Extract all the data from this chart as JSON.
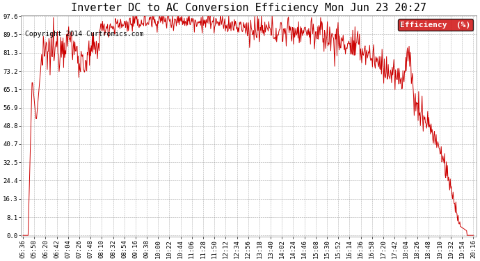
{
  "title": "Inverter DC to AC Conversion Efficiency Mon Jun 23 20:27",
  "copyright": "Copyright 2014 Curtronics.com",
  "legend_label": "Efficiency  (%)",
  "legend_bg": "#cc0000",
  "legend_fg": "#ffffff",
  "line_color": "#cc0000",
  "bg_color": "#ffffff",
  "plot_bg": "#ffffff",
  "grid_color": "#999999",
  "yticks": [
    0.0,
    8.1,
    16.3,
    24.4,
    32.5,
    40.7,
    48.8,
    56.9,
    65.1,
    73.2,
    81.3,
    89.5,
    97.6
  ],
  "xtick_labels": [
    "05:36",
    "05:58",
    "06:20",
    "06:42",
    "07:04",
    "07:26",
    "07:48",
    "08:10",
    "08:32",
    "08:54",
    "09:16",
    "09:38",
    "10:00",
    "10:22",
    "10:44",
    "11:06",
    "11:28",
    "11:50",
    "12:12",
    "12:34",
    "12:56",
    "13:18",
    "13:40",
    "14:02",
    "14:24",
    "14:46",
    "15:08",
    "15:30",
    "15:52",
    "16:14",
    "16:36",
    "16:58",
    "17:20",
    "17:42",
    "18:04",
    "18:26",
    "18:48",
    "19:10",
    "19:32",
    "19:54",
    "20:16"
  ],
  "ymin": 0.0,
  "ymax": 97.6,
  "title_fontsize": 11,
  "copyright_fontsize": 7,
  "tick_fontsize": 6.5,
  "legend_fontsize": 8
}
